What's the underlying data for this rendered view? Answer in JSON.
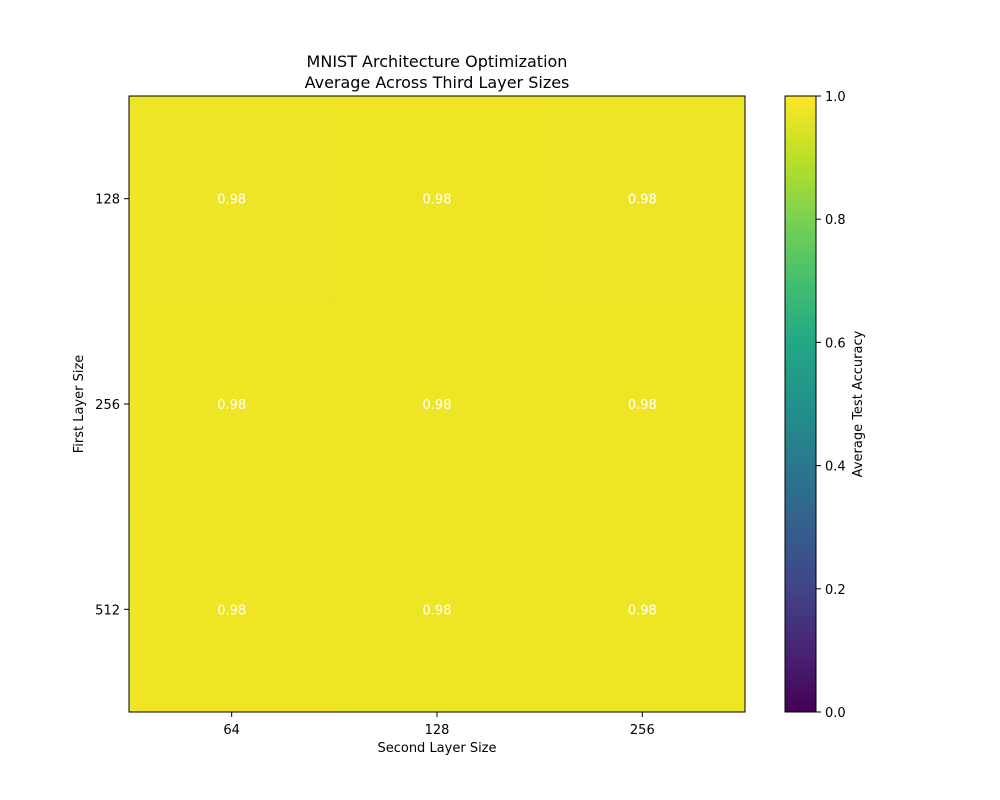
{
  "chart_data": {
    "type": "heatmap",
    "title": "MNIST Architecture Optimization",
    "subtitle": "Average Across Third Layer Sizes",
    "xlabel": "Second Layer Size",
    "ylabel": "First Layer Size",
    "x_categories": [
      "64",
      "128",
      "256"
    ],
    "y_categories": [
      "128",
      "256",
      "512"
    ],
    "values": [
      [
        0.975,
        0.978,
        0.975
      ],
      [
        0.977,
        0.977,
        0.978
      ],
      [
        0.978,
        0.977,
        0.976
      ]
    ],
    "cell_labels": [
      [
        "0.98",
        "0.98",
        "0.98"
      ],
      [
        "0.98",
        "0.98",
        "0.98"
      ],
      [
        "0.98",
        "0.98",
        "0.98"
      ]
    ],
    "colorbar": {
      "label": "Average Test Accuracy",
      "colormap": "viridis",
      "range": [
        0.0,
        1.0
      ],
      "ticks": [
        "0.0",
        "0.2",
        "0.4",
        "0.6",
        "0.8",
        "1.0"
      ]
    },
    "colors": {
      "cell_label": "#ffffff"
    }
  }
}
